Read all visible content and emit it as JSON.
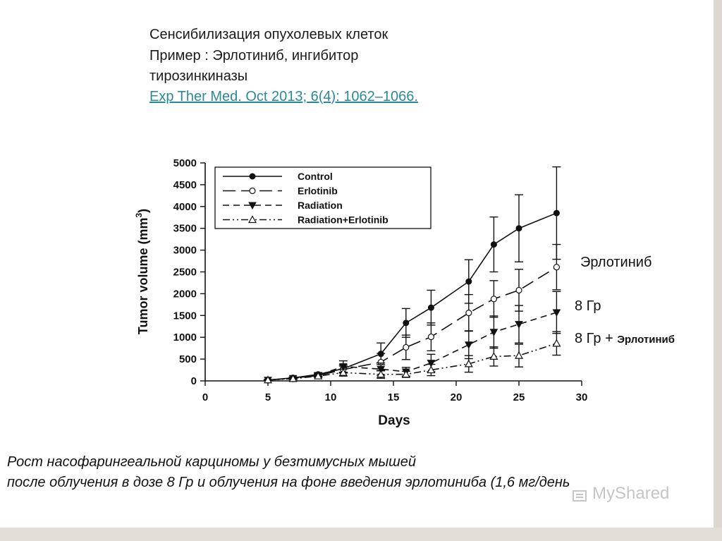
{
  "header": {
    "line1": "Сенсибилизация опухолевых клеток",
    "line2": "Пример : Эрлотиниб, ингибитор",
    "line3": "тирозинкиназы",
    "link": "Exp Ther Med. Oct 2013; 6(4): 1062–1066."
  },
  "annotations": {
    "erlotinib": "Эрлотиниб",
    "radiation": "8 Гр",
    "combo_prefix": "8 Гр +",
    "combo_suffix": "Эрлотиниб"
  },
  "caption": {
    "line1": "Рост  насофарингеальной карциномы у безтимусных мышей",
    "line2": "после облучения в дозе 8 Гр и облучения на фоне введения эрлотиниба (1,6 мг/день"
  },
  "watermark": "MyShared",
  "chart_data": {
    "type": "line",
    "xlabel": "Days",
    "ylabel": "Tumor volume (mm",
    "ylabel_sup": "3",
    "ylabel_close": ")",
    "xlim": [
      0,
      30
    ],
    "ylim": [
      0,
      5000
    ],
    "xticks": [
      0,
      5,
      10,
      15,
      20,
      25,
      30
    ],
    "yticks": [
      0,
      500,
      1000,
      1500,
      2000,
      2500,
      3000,
      3500,
      4000,
      4500,
      5000
    ],
    "grid": false,
    "legend_position": "top-left",
    "series": [
      {
        "name": "Control",
        "marker": "filled-circle",
        "dash": "",
        "x": [
          5,
          7,
          9,
          11,
          14,
          16,
          18,
          21,
          23,
          25,
          28
        ],
        "y": [
          20,
          70,
          150,
          280,
          620,
          1330,
          1680,
          2280,
          3130,
          3500,
          3850
        ],
        "err": [
          10,
          20,
          40,
          90,
          250,
          330,
          400,
          500,
          630,
          770,
          1060
        ]
      },
      {
        "name": "Erlotinib",
        "marker": "open-circle",
        "dash": "18 8",
        "x": [
          5,
          7,
          9,
          11,
          14,
          16,
          18,
          21,
          23,
          25,
          28
        ],
        "y": [
          20,
          60,
          120,
          260,
          430,
          770,
          1010,
          1560,
          1880,
          2080,
          2610
        ],
        "err": [
          10,
          20,
          30,
          80,
          200,
          280,
          320,
          420,
          420,
          480,
          520
        ]
      },
      {
        "name": "Radiation",
        "marker": "filled-triangle-down",
        "dash": "9 6",
        "x": [
          5,
          7,
          9,
          11,
          14,
          16,
          18,
          21,
          23,
          25,
          28
        ],
        "y": [
          20,
          60,
          130,
          330,
          270,
          210,
          410,
          830,
          1120,
          1300,
          1570
        ],
        "err": [
          10,
          20,
          40,
          130,
          140,
          100,
          200,
          320,
          370,
          430,
          480
        ]
      },
      {
        "name": "Radiation+Erlotinib",
        "marker": "open-triangle-up",
        "dash": "10 4 2 4 2 4",
        "x": [
          5,
          7,
          9,
          11,
          14,
          16,
          18,
          21,
          23,
          25,
          28
        ],
        "y": [
          20,
          50,
          110,
          190,
          150,
          150,
          250,
          390,
          560,
          580,
          860
        ],
        "err": [
          10,
          20,
          30,
          80,
          90,
          70,
          130,
          190,
          220,
          260,
          270
        ]
      }
    ]
  }
}
